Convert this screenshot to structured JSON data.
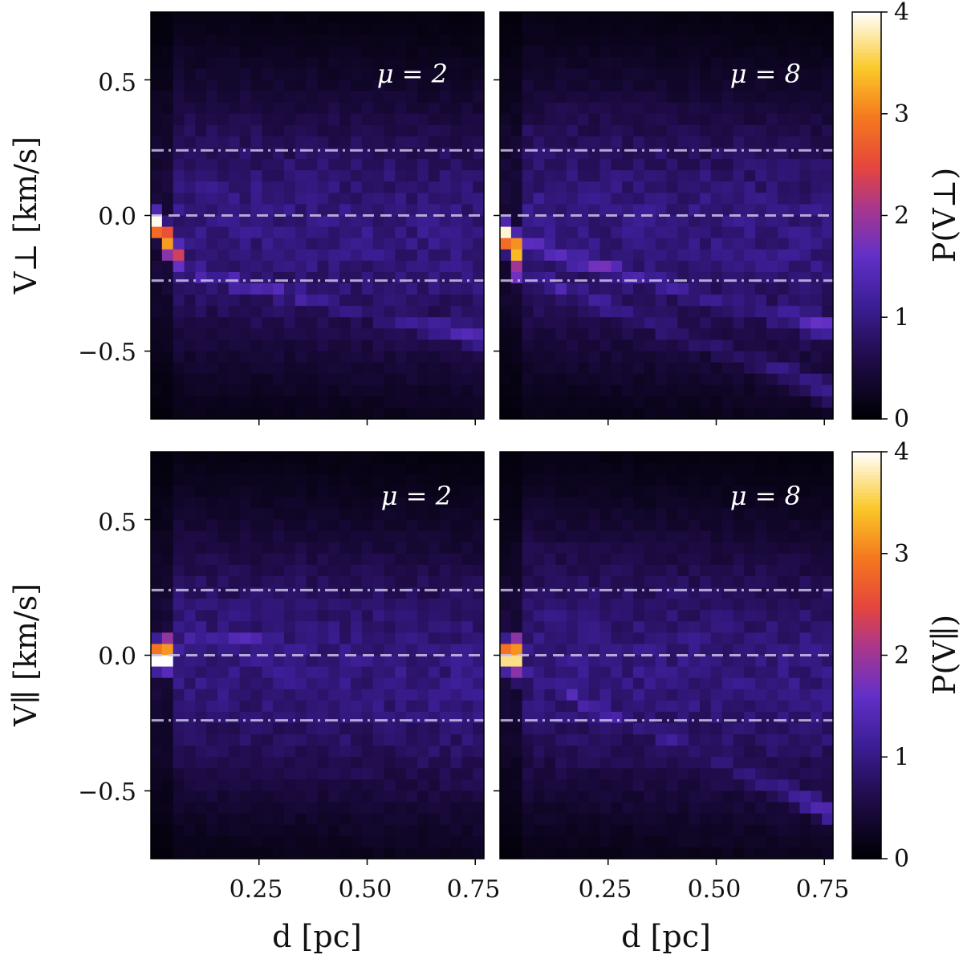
{
  "figure": {
    "colorbar_ticks": [
      "0",
      "1",
      "2",
      "3",
      "4"
    ],
    "colorbar_labels": [
      "P(V⊥)",
      "P(V∥)"
    ],
    "ylabels": [
      "V⊥ [km/s]",
      "V∥ [km/s]"
    ],
    "xlabel": "d [pc]",
    "ytick_labels": [
      "0.5",
      "0.0",
      "−0.5"
    ],
    "xtick_labels": [
      "0.25",
      "0.50",
      "0.75"
    ],
    "colormap": "inferno-like (black → purple → red → yellow → white)",
    "line_color": "#c9c3e6"
  },
  "chart_data": [
    {
      "type": "heatmap",
      "annotation": "μ = 2",
      "xlabel": "",
      "ylabel": "V⊥ [km/s]",
      "xlim": [
        0.0,
        0.77
      ],
      "ylim": [
        -0.75,
        0.75
      ],
      "zlim": [
        0,
        4
      ],
      "hlines": [
        {
          "y": 0.24,
          "style": "dashdot"
        },
        {
          "y": 0.0,
          "style": "dashed"
        },
        {
          "y": -0.24,
          "style": "dashdot"
        }
      ],
      "features": [
        {
          "x_from": 0.0,
          "x_to": 0.07,
          "y_from": 0.0,
          "y_to": -0.17,
          "peak": 4.0
        },
        {
          "x_from": 0.07,
          "x_to": 0.77,
          "y_from": -0.2,
          "y_to": -0.45,
          "peak": 2.1
        }
      ]
    },
    {
      "type": "heatmap",
      "annotation": "μ = 8",
      "xlabel": "",
      "ylabel": "",
      "xlim": [
        0.0,
        0.77
      ],
      "ylim": [
        -0.75,
        0.75
      ],
      "zlim": [
        0,
        4
      ],
      "hlines": [
        {
          "y": 0.24,
          "style": "dashdot"
        },
        {
          "y": 0.0,
          "style": "dashed"
        },
        {
          "y": -0.24,
          "style": "dashdot"
        }
      ],
      "features": [
        {
          "x_from": 0.0,
          "x_to": 0.05,
          "y_from": -0.05,
          "y_to": -0.15,
          "peak": 4.0
        },
        {
          "x_from": 0.03,
          "x_to": 0.77,
          "y_from": -0.1,
          "y_to": -0.42,
          "peak": 2.4
        },
        {
          "x_from": 0.03,
          "x_to": 0.77,
          "y_from": -0.2,
          "y_to": -0.65,
          "peak": 1.8
        }
      ]
    },
    {
      "type": "heatmap",
      "annotation": "μ = 2",
      "xlabel": "d [pc]",
      "ylabel": "V∥ [km/s]",
      "xlim": [
        0.0,
        0.77
      ],
      "ylim": [
        -0.75,
        0.75
      ],
      "zlim": [
        0,
        4
      ],
      "hlines": [
        {
          "y": 0.24,
          "style": "dashdot"
        },
        {
          "y": 0.0,
          "style": "dashed"
        },
        {
          "y": -0.24,
          "style": "dashdot"
        }
      ],
      "features": [
        {
          "x_from": 0.0,
          "x_to": 0.05,
          "y_from": 0.0,
          "y_to": 0.0,
          "peak": 4.0
        },
        {
          "x_from": 0.05,
          "x_to": 0.3,
          "y_from": 0.04,
          "y_to": 0.06,
          "peak": 2.0
        }
      ]
    },
    {
      "type": "heatmap",
      "annotation": "μ = 8",
      "xlabel": "d [pc]",
      "ylabel": "",
      "xlim": [
        0.0,
        0.77
      ],
      "ylim": [
        -0.75,
        0.75
      ],
      "zlim": [
        0,
        4
      ],
      "hlines": [
        {
          "y": 0.24,
          "style": "dashdot"
        },
        {
          "y": 0.0,
          "style": "dashed"
        },
        {
          "y": -0.24,
          "style": "dashdot"
        }
      ],
      "features": [
        {
          "x_from": 0.0,
          "x_to": 0.05,
          "y_from": 0.0,
          "y_to": 0.0,
          "peak": 4.0
        },
        {
          "x_from": 0.03,
          "x_to": 0.77,
          "y_from": -0.05,
          "y_to": -0.58,
          "peak": 2.0
        }
      ]
    }
  ]
}
